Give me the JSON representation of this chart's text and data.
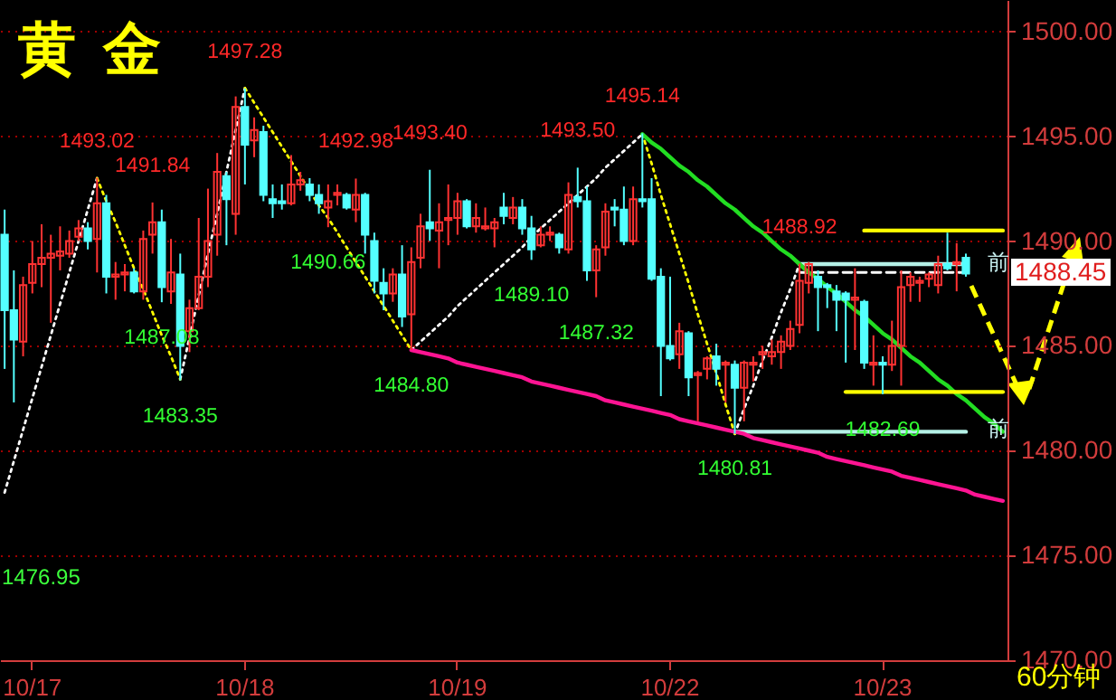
{
  "chart_data": {
    "type": "candlestick",
    "title": "黄 金",
    "categories": [
      null,
      null,
      null,
      "10/17",
      null,
      null,
      null,
      null,
      null,
      null,
      null,
      null,
      null,
      null,
      null,
      null,
      null,
      null,
      null,
      null,
      null,
      null,
      null,
      null,
      null,
      null,
      "10/18",
      null,
      null,
      null,
      null,
      null,
      null,
      null,
      null,
      null,
      null,
      null,
      null,
      null,
      null,
      null,
      null,
      null,
      null,
      null,
      null,
      null,
      null,
      "10/19",
      null,
      null,
      null,
      null,
      null,
      null,
      null,
      null,
      null,
      null,
      null,
      null,
      null,
      null,
      null,
      null,
      null,
      null,
      null,
      null,
      null,
      null,
      "10/22",
      null,
      null,
      null,
      null,
      null,
      null,
      null,
      null,
      null,
      null,
      null,
      null,
      null,
      null,
      null,
      null,
      null,
      null,
      null,
      null,
      null,
      null,
      "10/23",
      null,
      null,
      null,
      null,
      null,
      null,
      null,
      null,
      null,
      null,
      null,
      null,
      null
    ],
    "ohlc": [
      [
        1490.3,
        1491.5,
        1483.9,
        1486.7
      ],
      [
        1486.7,
        1488.6,
        1482.3,
        1485.3
      ],
      [
        1485.2,
        1488.3,
        1484.5,
        1487.9
      ],
      [
        1488.0,
        1490.0,
        1487.5,
        1488.9
      ],
      [
        1488.9,
        1490.8,
        1487.8,
        1489.2
      ],
      [
        1489.2,
        1490.3,
        1486.1,
        1489.4
      ],
      [
        1489.3,
        1490.7,
        1488.6,
        1489.5
      ],
      [
        1489.4,
        1490.5,
        1489.2,
        1490.0
      ],
      [
        1490.2,
        1491.0,
        1490.0,
        1490.6
      ],
      [
        1490.6,
        1490.9,
        1489.6,
        1490.0
      ],
      [
        1490.1,
        1493.02,
        1488.5,
        1491.8
      ],
      [
        1491.8,
        1492.2,
        1487.5,
        1488.3
      ],
      [
        1488.3,
        1489.0,
        1487.2,
        1488.4
      ],
      [
        1488.4,
        1488.9,
        1487.6,
        1488.5
      ],
      [
        1488.5,
        1488.7,
        1487.5,
        1487.6
      ],
      [
        1487.6,
        1490.5,
        1487.2,
        1490.1
      ],
      [
        1490.3,
        1491.84,
        1489.4,
        1490.9
      ],
      [
        1490.9,
        1491.5,
        1487.08,
        1487.8
      ],
      [
        1487.6,
        1490.1,
        1487.0,
        1488.5
      ],
      [
        1488.4,
        1489.4,
        1483.35,
        1485.0
      ],
      [
        1485.7,
        1487.2,
        1484.7,
        1486.8
      ],
      [
        1486.8,
        1491.1,
        1486.7,
        1488.3
      ],
      [
        1488.3,
        1492.5,
        1487.8,
        1490.0
      ],
      [
        1490.3,
        1494.2,
        1489.3,
        1493.3
      ],
      [
        1493.1,
        1493.3,
        1489.8,
        1492.0
      ],
      [
        1491.3,
        1496.9,
        1490.3,
        1496.4
      ],
      [
        1496.4,
        1497.28,
        1492.7,
        1494.6
      ],
      [
        1494.8,
        1495.9,
        1494.0,
        1495.3
      ],
      [
        1495.2,
        1495.5,
        1491.9,
        1492.2
      ],
      [
        1492.0,
        1492.7,
        1491.1,
        1491.8
      ],
      [
        1491.9,
        1492.7,
        1491.5,
        1491.8
      ],
      [
        1491.8,
        1494.1,
        1491.7,
        1492.7
      ],
      [
        1492.7,
        1493.3,
        1492.4,
        1492.9
      ],
      [
        1492.7,
        1493.0,
        1491.9,
        1492.2
      ],
      [
        1492.2,
        1492.7,
        1491.3,
        1491.8
      ],
      [
        1491.6,
        1492.7,
        1490.66,
        1491.9
      ],
      [
        1492.2,
        1492.7,
        1491.7,
        1492.3
      ],
      [
        1492.2,
        1492.3,
        1491.5,
        1491.6
      ],
      [
        1491.5,
        1492.98,
        1490.9,
        1492.2
      ],
      [
        1492.2,
        1492.3,
        1489.4,
        1490.3
      ],
      [
        1490.0,
        1490.4,
        1487.5,
        1488.1
      ],
      [
        1488.0,
        1488.7,
        1486.7,
        1487.5
      ],
      [
        1487.5,
        1488.7,
        1487.1,
        1488.4
      ],
      [
        1488.4,
        1489.8,
        1485.9,
        1486.4
      ],
      [
        1486.5,
        1489.7,
        1484.8,
        1489.0
      ],
      [
        1489.2,
        1491.3,
        1488.7,
        1490.7
      ],
      [
        1490.9,
        1493.4,
        1490.0,
        1490.6
      ],
      [
        1490.5,
        1491.8,
        1488.7,
        1490.9
      ],
      [
        1491.0,
        1492.7,
        1489.8,
        1491.1
      ],
      [
        1491.1,
        1492.3,
        1490.3,
        1491.9
      ],
      [
        1491.9,
        1492.0,
        1490.6,
        1490.7
      ],
      [
        1490.7,
        1491.8,
        1490.4,
        1491.1
      ],
      [
        1490.6,
        1491.6,
        1490.5,
        1490.7
      ],
      [
        1490.6,
        1491.1,
        1489.7,
        1490.9
      ],
      [
        1491.6,
        1492.3,
        1490.8,
        1491.2
      ],
      [
        1491.1,
        1492.1,
        1490.8,
        1491.6
      ],
      [
        1491.6,
        1492.0,
        1490.3,
        1490.6
      ],
      [
        1490.6,
        1491.2,
        1489.1,
        1489.6
      ],
      [
        1489.8,
        1490.7,
        1489.7,
        1490.3
      ],
      [
        1490.3,
        1490.7,
        1490.0,
        1490.4
      ],
      [
        1490.3,
        1490.4,
        1489.4,
        1489.7
      ],
      [
        1489.6,
        1492.8,
        1489.4,
        1492.2
      ],
      [
        1492.1,
        1493.5,
        1491.6,
        1491.9
      ],
      [
        1491.9,
        1492.6,
        1488.1,
        1488.6
      ],
      [
        1488.6,
        1489.8,
        1487.32,
        1489.6
      ],
      [
        1489.7,
        1491.8,
        1489.3,
        1491.4
      ],
      [
        1491.6,
        1492.0,
        1490.7,
        1491.5
      ],
      [
        1491.5,
        1492.6,
        1489.8,
        1490.0
      ],
      [
        1490.0,
        1492.6,
        1489.8,
        1492.0
      ],
      [
        1492.0,
        1495.14,
        1491.6,
        1491.9
      ],
      [
        1492.0,
        1493.0,
        1488.1,
        1488.2
      ],
      [
        1488.3,
        1488.7,
        1482.6,
        1485.0
      ],
      [
        1485.0,
        1488.3,
        1484.3,
        1484.4
      ],
      [
        1484.6,
        1486.1,
        1483.9,
        1485.7
      ],
      [
        1485.6,
        1485.7,
        1482.6,
        1483.5
      ],
      [
        1483.6,
        1483.8,
        1481.4,
        1483.7
      ],
      [
        1483.9,
        1484.5,
        1483.4,
        1484.4
      ],
      [
        1484.5,
        1485.1,
        1483.1,
        1483.9
      ],
      [
        1484.1,
        1484.3,
        1482.3,
        1484.2
      ],
      [
        1484.1,
        1484.3,
        1480.81,
        1483.0
      ],
      [
        1483.0,
        1484.3,
        1481.4,
        1484.2
      ],
      [
        1484.1,
        1484.5,
        1483.3,
        1484.2
      ],
      [
        1484.6,
        1485.0,
        1483.9,
        1484.7
      ],
      [
        1484.5,
        1485.3,
        1484.1,
        1484.7
      ],
      [
        1484.7,
        1485.5,
        1483.9,
        1485.2
      ],
      [
        1485.0,
        1486.2,
        1484.8,
        1485.8
      ],
      [
        1486.0,
        1488.92,
        1485.6,
        1488.1
      ],
      [
        1488.0,
        1489.0,
        1487.5,
        1488.9
      ],
      [
        1488.3,
        1488.6,
        1485.7,
        1487.8
      ],
      [
        1487.9,
        1488.0,
        1486.8,
        1487.8
      ],
      [
        1487.6,
        1487.9,
        1485.7,
        1487.2
      ],
      [
        1487.5,
        1487.6,
        1484.2,
        1487.2
      ],
      [
        1487.2,
        1488.7,
        1484.8,
        1487.3
      ],
      [
        1487.1,
        1487.2,
        1483.9,
        1484.2
      ],
      [
        1484.1,
        1485.5,
        1483.1,
        1484.2
      ],
      [
        1484.2,
        1484.5,
        1482.69,
        1484.1
      ],
      [
        1484.1,
        1486.2,
        1483.8,
        1485.0
      ],
      [
        1485.0,
        1488.6,
        1483.1,
        1487.8
      ],
      [
        1487.9,
        1488.5,
        1487.1,
        1488.3
      ],
      [
        1488.0,
        1488.3,
        1487.1,
        1488.1
      ],
      [
        1488.2,
        1488.5,
        1487.8,
        1488.4
      ],
      [
        1487.9,
        1489.3,
        1487.5,
        1488.9
      ],
      [
        1488.9,
        1490.4,
        1488.6,
        1488.7
      ],
      [
        1488.9,
        1489.9,
        1487.6,
        1489.0
      ],
      [
        1489.2,
        1489.4,
        1488.3,
        1488.45
      ],
      null,
      null,
      null,
      null
    ],
    "ylim": [
      1470,
      1501.5
    ],
    "yticks": [
      {
        "value": 1470,
        "label": "1470.00"
      },
      {
        "value": 1475,
        "label": "1475.00"
      },
      {
        "value": 1480,
        "label": "1480.00"
      },
      {
        "value": 1485,
        "label": "1485.00"
      },
      {
        "value": 1490,
        "label": "1490.00"
      },
      {
        "value": 1495,
        "label": "1495.00"
      },
      {
        "value": 1500,
        "label": "1500.00"
      }
    ],
    "grid": "y",
    "series": [
      {
        "type": "line",
        "color": "#ffffff",
        "line_style": "dotted",
        "values": [
          1478.0,
          1479.5,
          1481.0,
          1482.5,
          1484.0,
          1485.5,
          1487.0,
          1488.5,
          1490.0,
          1491.5,
          1493.0,
          null,
          null,
          null,
          null,
          null,
          null,
          null,
          null,
          1483.4,
          1485.4,
          1487.4,
          1489.4,
          1491.3,
          1493.3,
          1495.3,
          1497.3,
          null,
          null,
          null,
          null,
          null,
          null,
          null,
          null,
          null,
          null,
          null,
          null,
          null,
          null,
          null,
          null,
          null,
          1484.8,
          1485.2,
          1485.6,
          1486.0,
          1486.4,
          1486.9,
          1487.3,
          1487.7,
          1488.1,
          1488.5,
          1488.9,
          1489.3,
          1489.7,
          1490.2,
          1490.6,
          1491.0,
          1491.4,
          1491.8,
          1492.2,
          1492.6,
          1493.0,
          1493.5,
          1493.9,
          1494.3,
          1494.7,
          1495.1,
          null,
          null,
          null,
          null,
          null,
          null,
          null,
          null,
          null,
          1480.8,
          1482.0,
          1483.1,
          1484.3,
          1485.4,
          1486.6,
          1487.7,
          1488.9,
          null,
          null,
          null,
          null,
          null,
          null,
          null,
          null,
          null,
          null,
          null,
          null,
          null,
          null,
          null,
          null,
          null,
          null,
          null,
          null,
          null,
          null
        ]
      },
      {
        "type": "line",
        "color": "#ffff00",
        "line_style": "dotted",
        "values": [
          null,
          null,
          null,
          null,
          null,
          null,
          null,
          null,
          null,
          null,
          1493.0,
          1491.9,
          1490.9,
          1489.8,
          1488.7,
          1487.7,
          1486.6,
          1485.5,
          1484.5,
          1483.4,
          null,
          null,
          null,
          null,
          null,
          null,
          1497.3,
          1496.6,
          1495.9,
          1495.2,
          1494.5,
          1493.8,
          1493.1,
          1492.4,
          1491.7,
          1491.1,
          1490.4,
          1489.7,
          1489.0,
          1488.3,
          1487.6,
          1486.9,
          1486.2,
          1485.5,
          1484.8,
          null,
          null,
          null,
          null,
          null,
          null,
          null,
          null,
          null,
          null,
          null,
          null,
          null,
          null,
          null,
          null,
          null,
          null,
          null,
          null,
          null,
          null,
          null,
          null,
          1495.1,
          1493.7,
          1492.2,
          1490.8,
          1489.4,
          1488.0,
          1486.5,
          1485.1,
          1483.7,
          1482.2,
          1480.8,
          null,
          null,
          null,
          null,
          null,
          null,
          null,
          null,
          null,
          null,
          null,
          null,
          null,
          null,
          null,
          null,
          null,
          null,
          null,
          null,
          null,
          null,
          null,
          null,
          null,
          null,
          null,
          null,
          null
        ]
      },
      {
        "type": "line",
        "color": "#ffffff",
        "line_style": "dashed",
        "values": [
          null,
          null,
          null,
          null,
          null,
          null,
          null,
          null,
          null,
          null,
          null,
          null,
          null,
          null,
          null,
          null,
          null,
          null,
          null,
          null,
          null,
          null,
          null,
          null,
          null,
          null,
          null,
          null,
          null,
          null,
          null,
          null,
          null,
          null,
          null,
          null,
          null,
          null,
          null,
          null,
          null,
          null,
          null,
          null,
          null,
          null,
          null,
          null,
          null,
          null,
          null,
          null,
          null,
          null,
          null,
          null,
          null,
          null,
          null,
          null,
          null,
          null,
          null,
          null,
          null,
          null,
          null,
          null,
          null,
          null,
          null,
          null,
          null,
          null,
          null,
          null,
          null,
          null,
          null,
          null,
          null,
          null,
          null,
          null,
          null,
          null,
          1488.5,
          1488.5,
          1488.5,
          1488.5,
          1488.5,
          1488.5,
          1488.5,
          1488.5,
          1488.5,
          1488.5,
          1488.5,
          1488.5,
          1488.5,
          1488.5,
          1488.5,
          1488.5,
          1488.5,
          1488.5,
          1488.5,
          null,
          null,
          null,
          null
        ]
      },
      {
        "type": "line",
        "color": "#b4f0e6",
        "line_style": "solid",
        "values": [
          null,
          null,
          null,
          null,
          null,
          null,
          null,
          null,
          null,
          null,
          null,
          null,
          null,
          null,
          null,
          null,
          null,
          null,
          null,
          null,
          null,
          null,
          null,
          null,
          null,
          null,
          null,
          null,
          null,
          null,
          null,
          null,
          null,
          null,
          null,
          null,
          null,
          null,
          null,
          null,
          null,
          null,
          null,
          null,
          null,
          null,
          null,
          null,
          null,
          null,
          null,
          null,
          null,
          null,
          null,
          null,
          null,
          null,
          null,
          null,
          null,
          null,
          null,
          null,
          null,
          null,
          null,
          null,
          null,
          null,
          null,
          null,
          null,
          null,
          null,
          null,
          null,
          null,
          null,
          null,
          null,
          null,
          null,
          null,
          null,
          null,
          1488.9,
          1488.9,
          1488.9,
          1488.9,
          1488.9,
          1488.9,
          1488.9,
          1488.9,
          1488.9,
          1488.9,
          1488.9,
          1488.9,
          1488.9,
          1488.9,
          1488.9,
          1488.9,
          1488.9,
          1488.9,
          1488.9,
          null,
          null,
          null,
          null
        ]
      },
      {
        "type": "line",
        "color": "#b4f0e6",
        "line_style": "solid",
        "values": [
          null,
          null,
          null,
          null,
          null,
          null,
          null,
          null,
          null,
          null,
          null,
          null,
          null,
          null,
          null,
          null,
          null,
          null,
          null,
          null,
          null,
          null,
          null,
          null,
          null,
          null,
          null,
          null,
          null,
          null,
          null,
          null,
          null,
          null,
          null,
          null,
          null,
          null,
          null,
          null,
          null,
          null,
          null,
          null,
          null,
          null,
          null,
          null,
          null,
          null,
          null,
          null,
          null,
          null,
          null,
          null,
          null,
          null,
          null,
          null,
          null,
          null,
          null,
          null,
          null,
          null,
          null,
          null,
          null,
          null,
          null,
          null,
          null,
          null,
          null,
          null,
          null,
          null,
          null,
          1480.9,
          1480.9,
          1480.9,
          1480.9,
          1480.9,
          1480.9,
          1480.9,
          1480.9,
          1480.9,
          1480.9,
          1480.9,
          1480.9,
          1480.9,
          1480.9,
          1480.9,
          1480.9,
          1480.9,
          1480.9,
          1480.9,
          1480.9,
          1480.9,
          1480.9,
          1480.9,
          1480.9,
          1480.9,
          1480.9,
          null,
          null,
          null,
          null
        ]
      },
      {
        "type": "line",
        "color": "#ff1493",
        "line_style": "solid",
        "values": [
          null,
          null,
          null,
          null,
          null,
          null,
          null,
          null,
          null,
          null,
          null,
          null,
          null,
          null,
          null,
          null,
          null,
          null,
          null,
          null,
          null,
          null,
          null,
          null,
          null,
          null,
          null,
          null,
          null,
          null,
          null,
          null,
          null,
          null,
          null,
          null,
          null,
          null,
          null,
          null,
          null,
          null,
          null,
          null,
          1484.8,
          1484.7,
          1484.6,
          1484.5,
          1484.4,
          1484.2,
          1484.1,
          1484.0,
          1483.9,
          1483.8,
          1483.7,
          1483.6,
          1483.5,
          1483.3,
          1483.2,
          1483.1,
          1483.0,
          1482.9,
          1482.8,
          1482.7,
          1482.6,
          1482.4,
          1482.3,
          1482.2,
          1482.1,
          1482.0,
          1481.9,
          1481.8,
          1481.7,
          1481.5,
          1481.4,
          1481.3,
          1481.2,
          1481.1,
          1481.0,
          1480.9,
          1480.8,
          1480.6,
          1480.5,
          1480.4,
          1480.3,
          1480.2,
          1480.1,
          1480.0,
          1479.9,
          1479.7,
          1479.6,
          1479.5,
          1479.4,
          1479.3,
          1479.2,
          1479.1,
          1479.0,
          1478.8,
          1478.7,
          1478.6,
          1478.5,
          1478.4,
          1478.3,
          1478.2,
          1478.1,
          1477.9,
          1477.8,
          1477.7,
          1477.6
        ]
      },
      {
        "type": "line",
        "color": "#22dd22",
        "line_style": "solid",
        "values": [
          null,
          null,
          null,
          null,
          null,
          null,
          null,
          null,
          null,
          null,
          null,
          null,
          null,
          null,
          null,
          null,
          null,
          null,
          null,
          null,
          null,
          null,
          null,
          null,
          null,
          null,
          null,
          null,
          null,
          null,
          null,
          null,
          null,
          null,
          null,
          null,
          null,
          null,
          null,
          null,
          null,
          null,
          null,
          null,
          null,
          null,
          null,
          null,
          null,
          null,
          null,
          null,
          null,
          null,
          null,
          null,
          null,
          null,
          null,
          null,
          null,
          null,
          null,
          null,
          null,
          null,
          null,
          null,
          null,
          1495.1,
          1494.7,
          1494.4,
          1494.0,
          1493.6,
          1493.3,
          1492.9,
          1492.6,
          1492.2,
          1491.8,
          1491.5,
          1491.1,
          1490.7,
          1490.4,
          1490.0,
          1489.6,
          1489.3,
          1488.9,
          1488.5,
          1488.2,
          1487.8,
          1487.5,
          1487.1,
          1486.7,
          1486.4,
          1486.0,
          1485.6,
          1485.3,
          1484.9,
          1484.5,
          1484.2,
          1483.8,
          1483.4,
          1483.1,
          1482.7,
          1482.4,
          1482.0,
          1481.6,
          1481.3,
          1480.9
        ]
      },
      {
        "type": "line",
        "color": "#ffff00",
        "line_style": "solid",
        "values": [
          null,
          null,
          null,
          null,
          null,
          null,
          null,
          null,
          null,
          null,
          null,
          null,
          null,
          null,
          null,
          null,
          null,
          null,
          null,
          null,
          null,
          null,
          null,
          null,
          null,
          null,
          null,
          null,
          null,
          null,
          null,
          null,
          null,
          null,
          null,
          null,
          null,
          null,
          null,
          null,
          null,
          null,
          null,
          null,
          null,
          null,
          null,
          null,
          null,
          null,
          null,
          null,
          null,
          null,
          null,
          null,
          null,
          null,
          null,
          null,
          null,
          null,
          null,
          null,
          null,
          null,
          null,
          null,
          null,
          null,
          null,
          null,
          null,
          null,
          null,
          null,
          null,
          null,
          null,
          null,
          null,
          null,
          null,
          null,
          null,
          null,
          null,
          null,
          null,
          null,
          null,
          null,
          null,
          1490.5,
          1490.5,
          1490.5,
          1490.5,
          1490.5,
          1490.5,
          1490.5,
          1490.5,
          1490.5,
          1490.5,
          1490.5,
          1490.5,
          1490.5,
          1490.5,
          1490.5,
          1490.5
        ]
      },
      {
        "type": "line",
        "color": "#ffff00",
        "line_style": "solid",
        "values": [
          null,
          null,
          null,
          null,
          null,
          null,
          null,
          null,
          null,
          null,
          null,
          null,
          null,
          null,
          null,
          null,
          null,
          null,
          null,
          null,
          null,
          null,
          null,
          null,
          null,
          null,
          null,
          null,
          null,
          null,
          null,
          null,
          null,
          null,
          null,
          null,
          null,
          null,
          null,
          null,
          null,
          null,
          null,
          null,
          null,
          null,
          null,
          null,
          null,
          null,
          null,
          null,
          null,
          null,
          null,
          null,
          null,
          null,
          null,
          null,
          null,
          null,
          null,
          null,
          null,
          null,
          null,
          null,
          null,
          null,
          null,
          null,
          null,
          null,
          null,
          null,
          null,
          null,
          null,
          null,
          null,
          null,
          null,
          null,
          null,
          null,
          null,
          null,
          null,
          null,
          null,
          1482.8,
          1482.8,
          1482.8,
          1482.8,
          1482.8,
          1482.8,
          1482.8,
          1482.8,
          1482.8,
          1482.8,
          1482.8,
          1482.8,
          1482.8,
          1482.8,
          1482.8,
          1482.8,
          1482.8,
          1482.8
        ]
      }
    ],
    "annotations": [
      {
        "text": "1493.02",
        "y": 1493.02
      },
      {
        "text": "1491.84",
        "y": 1491.84
      },
      {
        "text": "1497.28",
        "y": 1497.28
      },
      {
        "text": "1492.98",
        "y": 1492.98
      },
      {
        "text": "1493.40",
        "y": 1493.4
      },
      {
        "text": "1493.50",
        "y": 1493.5
      },
      {
        "text": "1495.14",
        "y": 1495.14
      },
      {
        "text": "1488.92",
        "y": 1488.92
      },
      {
        "text": "1487.08",
        "y": 1487.08
      },
      {
        "text": "1483.35",
        "y": 1483.35
      },
      {
        "text": "1490.66",
        "y": 1490.66
      },
      {
        "text": "1484.80",
        "y": 1484.8
      },
      {
        "text": "1489.10",
        "y": 1489.1
      },
      {
        "text": "1487.32",
        "y": 1487.32
      },
      {
        "text": "1480.81",
        "y": 1480.81
      },
      {
        "text": "1482.69",
        "y": 1482.69
      },
      "1476.95",
      "前",
      "前",
      "1488.45",
      "60分钟"
    ]
  }
}
